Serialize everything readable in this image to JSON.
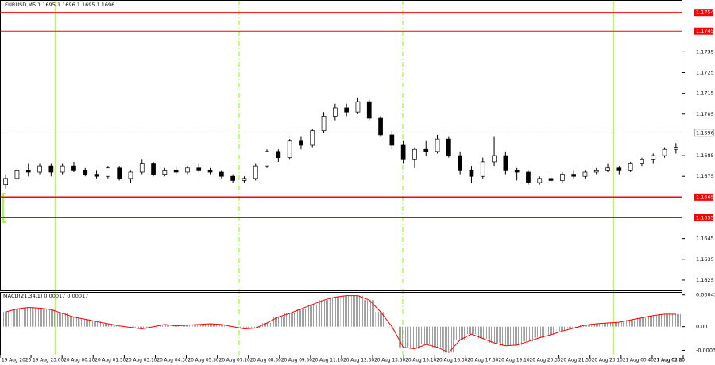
{
  "chart_data": [
    {
      "type": "candlestick",
      "title": "EURUSD,M5  1.1695 1.1696 1.1695 1.1696",
      "up_color": "#ffffff",
      "down_color": "#000000",
      "outline_color": "#000000",
      "candles": {
        "open": [
          1.1671,
          1.1674,
          1.1678,
          1.1677,
          1.168,
          1.1677,
          1.168,
          1.1678,
          1.1676,
          1.1675,
          1.1679,
          1.1674,
          1.1677,
          1.1681,
          1.1676,
          1.1678,
          1.1677,
          1.1679,
          1.1678,
          1.1677,
          1.1675,
          1.1673,
          1.1674,
          1.168,
          1.1687,
          1.1684,
          1.1692,
          1.169,
          1.1697,
          1.1704,
          1.1708,
          1.1706,
          1.1711,
          1.1703,
          1.1695,
          1.169,
          1.1683,
          1.1688,
          1.1687,
          1.1693,
          1.1685,
          1.1678,
          1.1675,
          1.1682,
          1.1685,
          1.1678,
          1.1677,
          1.1672,
          1.1674,
          1.1673,
          1.1676,
          1.1675,
          1.1677,
          1.1678,
          1.1679,
          1.1678,
          1.1681,
          1.1683,
          1.1685,
          1.1688
        ],
        "high": [
          1.1676,
          1.1679,
          1.1681,
          1.1681,
          1.1681,
          1.1681,
          1.1682,
          1.1679,
          1.1678,
          1.168,
          1.168,
          1.1678,
          1.1683,
          1.1682,
          1.1679,
          1.168,
          1.168,
          1.1681,
          1.1679,
          1.1678,
          1.1676,
          1.1675,
          1.1681,
          1.1688,
          1.1688,
          1.1693,
          1.1694,
          1.1698,
          1.1706,
          1.171,
          1.171,
          1.1713,
          1.1712,
          1.1704,
          1.1697,
          1.1692,
          1.1689,
          1.1692,
          1.1695,
          1.1694,
          1.1687,
          1.168,
          1.1684,
          1.1694,
          1.1687,
          1.1679,
          1.1678,
          1.1675,
          1.1676,
          1.1677,
          1.1678,
          1.1678,
          1.1679,
          1.1681,
          1.168,
          1.1682,
          1.1684,
          1.1686,
          1.1689,
          1.1691
        ],
        "low": [
          1.1669,
          1.1672,
          1.1675,
          1.1676,
          1.1675,
          1.1676,
          1.1677,
          1.1675,
          1.1674,
          1.1674,
          1.1673,
          1.1672,
          1.1676,
          1.1675,
          1.1675,
          1.1676,
          1.1676,
          1.1677,
          1.1676,
          1.1674,
          1.1672,
          1.1672,
          1.1673,
          1.1679,
          1.1682,
          1.1683,
          1.1688,
          1.1689,
          1.1696,
          1.1702,
          1.1704,
          1.1705,
          1.1702,
          1.1694,
          1.1688,
          1.1681,
          1.1679,
          1.1685,
          1.1686,
          1.1684,
          1.1676,
          1.1672,
          1.1674,
          1.168,
          1.1676,
          1.1673,
          1.1671,
          1.1671,
          1.1672,
          1.1672,
          1.1674,
          1.1674,
          1.1676,
          1.1677,
          1.1676,
          1.1677,
          1.168,
          1.1681,
          1.1684,
          1.1686
        ],
        "close": [
          1.1674,
          1.1678,
          1.1677,
          1.168,
          1.1677,
          1.168,
          1.1678,
          1.1676,
          1.1675,
          1.1679,
          1.1674,
          1.1677,
          1.1681,
          1.1676,
          1.1678,
          1.1677,
          1.1679,
          1.1678,
          1.1677,
          1.1675,
          1.1673,
          1.1674,
          1.168,
          1.1687,
          1.1684,
          1.1692,
          1.169,
          1.1697,
          1.1704,
          1.1708,
          1.1706,
          1.1711,
          1.1703,
          1.1695,
          1.169,
          1.1683,
          1.1688,
          1.1687,
          1.1693,
          1.1685,
          1.1678,
          1.1675,
          1.1682,
          1.1685,
          1.1678,
          1.1677,
          1.1672,
          1.1674,
          1.1673,
          1.1676,
          1.1675,
          1.1677,
          1.1678,
          1.1679,
          1.1678,
          1.1681,
          1.1683,
          1.1685,
          1.1688,
          1.1689
        ]
      },
      "ylim": [
        1.162,
        1.176
      ],
      "yticks": [
        1.1735,
        1.1725,
        1.1715,
        1.1705,
        1.1685,
        1.1675,
        1.1645,
        1.1635,
        1.1625
      ],
      "levels": [
        1.1754,
        1.1745,
        1.1665,
        1.1655
      ],
      "level_color": "#ff0000",
      "last_price": 1.1696,
      "x_labels": [
        "19 Aug 2026",
        "19 Aug 23:00",
        "20 Aug 00:20",
        "20 Aug 01:50",
        "20 Aug 03:10",
        "20 Aug 04:30",
        "20 Aug 05:50",
        "20 Aug 07:10",
        "20 Aug 08:30",
        "20 Aug 09:50",
        "20 Aug 11:10",
        "20 Aug 12:30",
        "20 Aug 13:50",
        "20 Aug 15:10",
        "20 Aug 16:30",
        "20 Aug 17:50",
        "20 Aug 19:10",
        "20 Aug 20:30",
        "20 Aug 21:50",
        "20 Aug 23:10",
        "21 Aug 00:40",
        "21 Aug 02:00",
        "21 Aug 03:20"
      ]
    },
    {
      "type": "bar",
      "title": "MACD(21,34,1) 0.00017 0.00017",
      "color": "#a0a0a0",
      "line_color": "#ff0000",
      "values": [
        0.0002,
        0.00024,
        0.00026,
        0.00025,
        0.00023,
        0.00018,
        0.00013,
        0.0001,
        7e-05,
        4e-05,
        1e-05,
        -1e-05,
        -3e-05,
        0,
        3e-05,
        1e-05,
        2e-05,
        3e-05,
        4e-05,
        3e-05,
        0,
        -3e-05,
        -2e-05,
        5e-05,
        0.00013,
        0.00018,
        0.00024,
        0.0003,
        0.00036,
        0.0004,
        0.00042,
        0.00042,
        0.00036,
        0.0002,
        0,
        -0.00028,
        -0.0003,
        -0.00024,
        -0.00028,
        -0.00035,
        -0.00018,
        -0.0001,
        -0.00016,
        -0.00022,
        -0.00026,
        -0.00025,
        -0.0002,
        -0.00015,
        -0.00011,
        -6e-05,
        -2e-05,
        2e-05,
        4e-05,
        5e-05,
        6e-05,
        9e-05,
        0.00012,
        0.00015,
        0.00017,
        0.00017
      ],
      "ylim": [
        -0.00038,
        0.00047
      ],
      "yticks": [
        0.00043,
        {
          "value": 0,
          "label": "0.00"
        },
        -0.00032
      ]
    }
  ]
}
